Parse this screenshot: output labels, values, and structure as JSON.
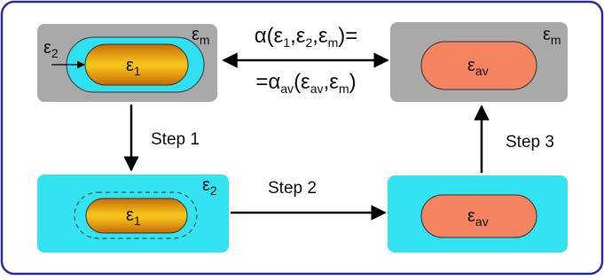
{
  "panels": {
    "top_left": {
      "medium": {
        "t": "ε",
        "s": "m"
      },
      "shell": {
        "t": "ε",
        "s": "2"
      },
      "core": {
        "t": "ε",
        "s": "1"
      }
    },
    "top_right": {
      "medium": {
        "t": "ε",
        "s": "m"
      },
      "core": {
        "t": "ε",
        "s": "av"
      }
    },
    "bottom_left": {
      "medium": {
        "t": "ε",
        "s": "2"
      },
      "core": {
        "t": "ε",
        "s": "1"
      }
    },
    "bottom_right": {
      "core": {
        "t": "ε",
        "s": "av"
      }
    }
  },
  "equation": {
    "line1": [
      {
        "t": "α(ε",
        "s": "1"
      },
      {
        "t": ",ε",
        "s": "2"
      },
      {
        "t": ",ε",
        "s": "m"
      },
      {
        "t": ")="
      }
    ],
    "line2": [
      {
        "t": "=α",
        "s": "av"
      },
      {
        "t": "(ε",
        "s": "av"
      },
      {
        "t": ",ε",
        "s": "m"
      },
      {
        "t": ")"
      }
    ]
  },
  "steps": [
    "Step 1",
    "Step 2",
    "Step 3"
  ]
}
